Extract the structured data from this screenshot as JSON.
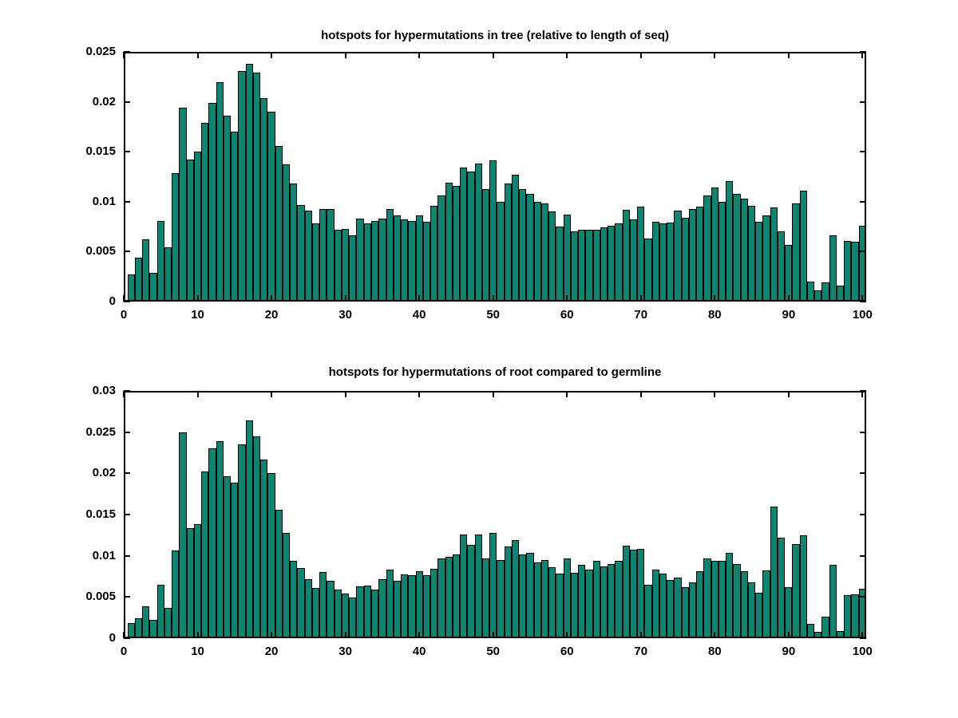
{
  "figure": {
    "background": "#ffffff"
  },
  "chart_data": [
    {
      "type": "bar",
      "title": "hotspots for hypermutations in tree (relative to length of seq)",
      "x_start": 1,
      "values": [
        0.0027,
        0.0044,
        0.0062,
        0.0029,
        0.0081,
        0.0054,
        0.0129,
        0.0194,
        0.0142,
        0.015,
        0.0179,
        0.0199,
        0.022,
        0.0186,
        0.017,
        0.0231,
        0.0238,
        0.0229,
        0.0204,
        0.019,
        0.0156,
        0.0137,
        0.0118,
        0.0097,
        0.0091,
        0.0078,
        0.0093,
        0.0093,
        0.0072,
        0.0073,
        0.0066,
        0.0083,
        0.0078,
        0.0081,
        0.0083,
        0.0093,
        0.0086,
        0.0082,
        0.0081,
        0.0086,
        0.008,
        0.0096,
        0.0106,
        0.0119,
        0.0116,
        0.0134,
        0.013,
        0.0138,
        0.0113,
        0.0141,
        0.01,
        0.0118,
        0.0127,
        0.0113,
        0.0108,
        0.01,
        0.0098,
        0.009,
        0.0075,
        0.0087,
        0.007,
        0.0072,
        0.0072,
        0.0072,
        0.0074,
        0.0076,
        0.0078,
        0.0092,
        0.0082,
        0.0095,
        0.0063,
        0.008,
        0.0078,
        0.0079,
        0.0091,
        0.0084,
        0.0093,
        0.0095,
        0.0106,
        0.0114,
        0.01,
        0.0121,
        0.0108,
        0.0103,
        0.0096,
        0.008,
        0.0086,
        0.0094,
        0.007,
        0.0057,
        0.0098,
        0.0111,
        0.002,
        0.0011,
        0.0019,
        0.0066,
        0.0016,
        0.0061,
        0.006,
        0.0076
      ],
      "xlim": [
        0,
        100.5
      ],
      "ylim": [
        0,
        0.025
      ],
      "xticks": [
        0,
        10,
        20,
        30,
        40,
        50,
        60,
        70,
        80,
        90,
        100
      ],
      "xtick_labels": [
        "0",
        "10",
        "20",
        "30",
        "40",
        "50",
        "60",
        "70",
        "80",
        "90",
        "100"
      ],
      "yticks": [
        0,
        0.005,
        0.01,
        0.015,
        0.02,
        0.025
      ],
      "ytick_labels": [
        "0",
        "0.005",
        "0.01",
        "0.015",
        "0.02",
        "0.025"
      ],
      "grid": false,
      "bar_color": "#0e8570",
      "bar_edge_color": "#000000"
    },
    {
      "type": "bar",
      "title": "hotspots for hypermutations of root compared to germline",
      "x_start": 1,
      "values": [
        0.0018,
        0.0024,
        0.0039,
        0.0022,
        0.0065,
        0.0037,
        0.0106,
        0.025,
        0.0134,
        0.0138,
        0.0202,
        0.023,
        0.0239,
        0.0196,
        0.0189,
        0.0235,
        0.0264,
        0.0245,
        0.0217,
        0.02,
        0.0156,
        0.0128,
        0.0094,
        0.0085,
        0.0072,
        0.0061,
        0.008,
        0.007,
        0.0059,
        0.0054,
        0.0049,
        0.0063,
        0.0064,
        0.0059,
        0.0072,
        0.0083,
        0.007,
        0.0077,
        0.0076,
        0.0081,
        0.0076,
        0.0084,
        0.0097,
        0.0099,
        0.0102,
        0.0126,
        0.0113,
        0.0126,
        0.0097,
        0.0128,
        0.0095,
        0.0111,
        0.0119,
        0.0102,
        0.0104,
        0.0092,
        0.0095,
        0.0086,
        0.0078,
        0.0097,
        0.0079,
        0.0089,
        0.0083,
        0.0094,
        0.0087,
        0.009,
        0.0094,
        0.0112,
        0.0107,
        0.0108,
        0.0065,
        0.0083,
        0.0078,
        0.0071,
        0.0074,
        0.0062,
        0.0068,
        0.0081,
        0.0097,
        0.0094,
        0.0094,
        0.0104,
        0.009,
        0.0081,
        0.0068,
        0.0055,
        0.0082,
        0.016,
        0.0122,
        0.0062,
        0.0114,
        0.0125,
        0.0017,
        0.0008,
        0.0026,
        0.0089,
        0.0009,
        0.0052,
        0.0053,
        0.006
      ],
      "xlim": [
        0,
        100.5
      ],
      "ylim": [
        0,
        0.03
      ],
      "xticks": [
        0,
        10,
        20,
        30,
        40,
        50,
        60,
        70,
        80,
        90,
        100
      ],
      "xtick_labels": [
        "0",
        "10",
        "20",
        "30",
        "40",
        "50",
        "60",
        "70",
        "80",
        "90",
        "100"
      ],
      "yticks": [
        0,
        0.005,
        0.01,
        0.015,
        0.02,
        0.025,
        0.03
      ],
      "ytick_labels": [
        "0",
        "0.005",
        "0.01",
        "0.015",
        "0.02",
        "0.025",
        "0.03"
      ],
      "grid": false,
      "bar_color": "#0e8570",
      "bar_edge_color": "#000000"
    }
  ]
}
